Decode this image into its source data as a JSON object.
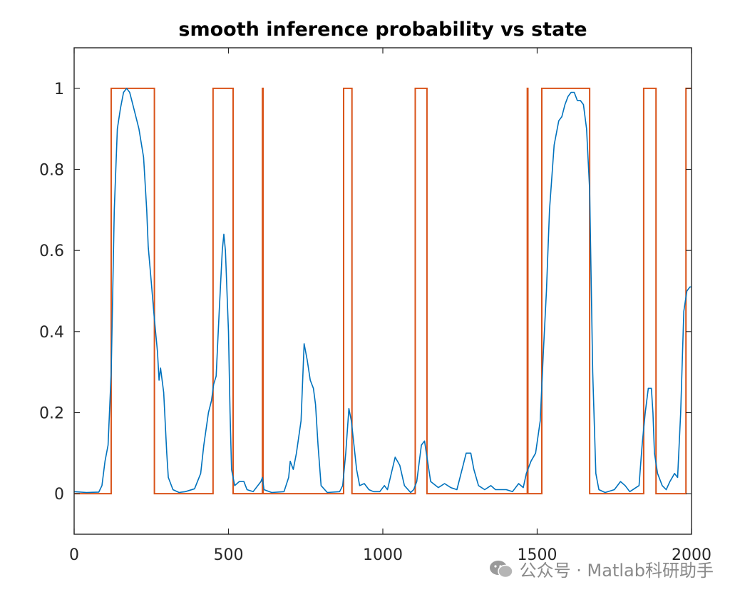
{
  "chart_data": {
    "type": "line",
    "title": "smooth inference probability vs state",
    "xlabel": "",
    "ylabel": "",
    "xlim": [
      0,
      2000
    ],
    "ylim": [
      -0.1,
      1.1
    ],
    "x_ticks": [
      0,
      500,
      1000,
      1500,
      2000
    ],
    "x_tick_labels": [
      "0",
      "500",
      "1000",
      "1500",
      "2000"
    ],
    "y_ticks": [
      0,
      0.2,
      0.4,
      0.6,
      0.8,
      1
    ],
    "y_tick_labels": [
      "0",
      "0.2",
      "0.4",
      "0.6",
      "0.8",
      "1"
    ],
    "grid": false,
    "series": [
      {
        "name": "smooth inference probability",
        "color": "#0072BD",
        "points": [
          [
            0,
            0.005
          ],
          [
            40,
            0.003
          ],
          [
            80,
            0.004
          ],
          [
            90,
            0.02
          ],
          [
            100,
            0.08
          ],
          [
            110,
            0.12
          ],
          [
            120,
            0.3
          ],
          [
            130,
            0.7
          ],
          [
            140,
            0.9
          ],
          [
            150,
            0.95
          ],
          [
            160,
            0.99
          ],
          [
            170,
            1.0
          ],
          [
            180,
            0.99
          ],
          [
            190,
            0.96
          ],
          [
            200,
            0.93
          ],
          [
            210,
            0.9
          ],
          [
            225,
            0.83
          ],
          [
            235,
            0.7
          ],
          [
            240,
            0.61
          ],
          [
            250,
            0.52
          ],
          [
            260,
            0.43
          ],
          [
            270,
            0.35
          ],
          [
            275,
            0.28
          ],
          [
            280,
            0.31
          ],
          [
            290,
            0.25
          ],
          [
            300,
            0.1
          ],
          [
            305,
            0.04
          ],
          [
            320,
            0.01
          ],
          [
            340,
            0.003
          ],
          [
            360,
            0.005
          ],
          [
            390,
            0.012
          ],
          [
            410,
            0.05
          ],
          [
            420,
            0.12
          ],
          [
            435,
            0.2
          ],
          [
            445,
            0.23
          ],
          [
            452,
            0.27
          ],
          [
            460,
            0.29
          ],
          [
            470,
            0.45
          ],
          [
            480,
            0.6
          ],
          [
            485,
            0.64
          ],
          [
            490,
            0.6
          ],
          [
            500,
            0.4
          ],
          [
            505,
            0.2
          ],
          [
            510,
            0.06
          ],
          [
            520,
            0.02
          ],
          [
            535,
            0.03
          ],
          [
            550,
            0.03
          ],
          [
            560,
            0.01
          ],
          [
            580,
            0.005
          ],
          [
            605,
            0.03
          ],
          [
            610,
            0.04
          ],
          [
            615,
            0.01
          ],
          [
            640,
            0.003
          ],
          [
            680,
            0.005
          ],
          [
            695,
            0.04
          ],
          [
            700,
            0.08
          ],
          [
            710,
            0.06
          ],
          [
            720,
            0.1
          ],
          [
            735,
            0.18
          ],
          [
            745,
            0.37
          ],
          [
            755,
            0.33
          ],
          [
            765,
            0.28
          ],
          [
            775,
            0.26
          ],
          [
            782,
            0.22
          ],
          [
            790,
            0.12
          ],
          [
            800,
            0.02
          ],
          [
            820,
            0.003
          ],
          [
            860,
            0.005
          ],
          [
            870,
            0.02
          ],
          [
            880,
            0.1
          ],
          [
            890,
            0.21
          ],
          [
            898,
            0.18
          ],
          [
            905,
            0.13
          ],
          [
            915,
            0.06
          ],
          [
            925,
            0.02
          ],
          [
            940,
            0.025
          ],
          [
            955,
            0.01
          ],
          [
            970,
            0.005
          ],
          [
            990,
            0.005
          ],
          [
            1005,
            0.02
          ],
          [
            1015,
            0.01
          ],
          [
            1040,
            0.09
          ],
          [
            1055,
            0.07
          ],
          [
            1070,
            0.02
          ],
          [
            1090,
            0.003
          ],
          [
            1100,
            0.01
          ],
          [
            1110,
            0.03
          ],
          [
            1125,
            0.12
          ],
          [
            1135,
            0.13
          ],
          [
            1145,
            0.08
          ],
          [
            1155,
            0.03
          ],
          [
            1180,
            0.015
          ],
          [
            1200,
            0.025
          ],
          [
            1220,
            0.015
          ],
          [
            1240,
            0.01
          ],
          [
            1260,
            0.07
          ],
          [
            1270,
            0.1
          ],
          [
            1285,
            0.1
          ],
          [
            1295,
            0.06
          ],
          [
            1310,
            0.02
          ],
          [
            1330,
            0.01
          ],
          [
            1350,
            0.02
          ],
          [
            1365,
            0.01
          ],
          [
            1400,
            0.01
          ],
          [
            1420,
            0.005
          ],
          [
            1440,
            0.025
          ],
          [
            1455,
            0.015
          ],
          [
            1465,
            0.05
          ],
          [
            1480,
            0.08
          ],
          [
            1495,
            0.1
          ],
          [
            1510,
            0.18
          ],
          [
            1520,
            0.35
          ],
          [
            1530,
            0.5
          ],
          [
            1540,
            0.7
          ],
          [
            1555,
            0.86
          ],
          [
            1570,
            0.92
          ],
          [
            1580,
            0.93
          ],
          [
            1590,
            0.96
          ],
          [
            1600,
            0.98
          ],
          [
            1610,
            0.99
          ],
          [
            1620,
            0.99
          ],
          [
            1630,
            0.97
          ],
          [
            1640,
            0.97
          ],
          [
            1650,
            0.96
          ],
          [
            1660,
            0.9
          ],
          [
            1670,
            0.75
          ],
          [
            1680,
            0.3
          ],
          [
            1690,
            0.05
          ],
          [
            1700,
            0.01
          ],
          [
            1720,
            0.003
          ],
          [
            1750,
            0.01
          ],
          [
            1770,
            0.03
          ],
          [
            1785,
            0.02
          ],
          [
            1800,
            0.005
          ],
          [
            1830,
            0.02
          ],
          [
            1840,
            0.12
          ],
          [
            1850,
            0.2
          ],
          [
            1860,
            0.26
          ],
          [
            1870,
            0.26
          ],
          [
            1875,
            0.2
          ],
          [
            1880,
            0.1
          ],
          [
            1890,
            0.05
          ],
          [
            1905,
            0.02
          ],
          [
            1918,
            0.01
          ],
          [
            1930,
            0.03
          ],
          [
            1945,
            0.05
          ],
          [
            1955,
            0.04
          ],
          [
            1965,
            0.2
          ],
          [
            1975,
            0.45
          ],
          [
            1985,
            0.5
          ],
          [
            1995,
            0.51
          ],
          [
            2000,
            0.51
          ]
        ]
      },
      {
        "name": "state",
        "color": "#D95319",
        "steps": [
          [
            0,
            0
          ],
          [
            120,
            1
          ],
          [
            260,
            0
          ],
          [
            450,
            1
          ],
          [
            515,
            0
          ],
          [
            610,
            1
          ],
          [
            612,
            0
          ],
          [
            873,
            1
          ],
          [
            900,
            0
          ],
          [
            1105,
            1
          ],
          [
            1143,
            0
          ],
          [
            1468,
            1
          ],
          [
            1470,
            0
          ],
          [
            1515,
            1
          ],
          [
            1670,
            0
          ],
          [
            1845,
            1
          ],
          [
            1885,
            0
          ],
          [
            1982,
            1
          ],
          [
            2000,
            1
          ]
        ]
      }
    ]
  },
  "watermark": {
    "icon": "wechat-icon",
    "text": "公众号 · Matlab科研助手"
  }
}
